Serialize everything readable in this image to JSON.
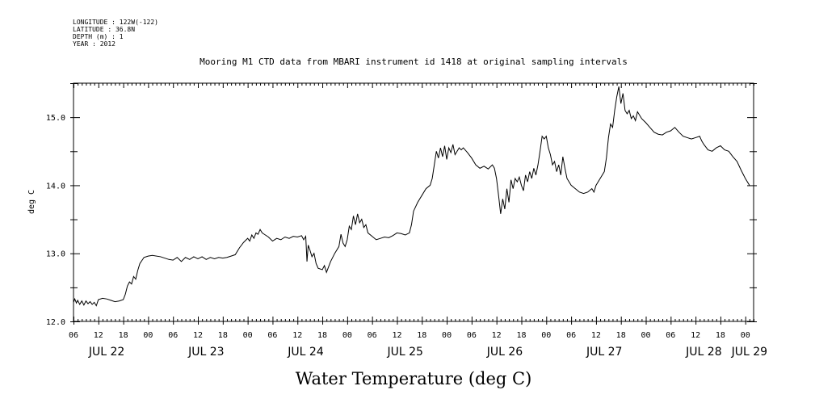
{
  "header": {
    "lines": [
      "LONGITUDE : 122W(-122)",
      "LATITUDE : 36.8N",
      "DEPTH (m) : 1",
      "YEAR : 2012"
    ]
  },
  "chart_data": {
    "type": "line",
    "title": "Mooring M1 CTD data from MBARI instrument id 1418 at original sampling intervals",
    "ylabel": "deg C",
    "xlabel": "Water Temperature (deg C)",
    "ylim": [
      12.0,
      15.5
    ],
    "xlim_hours": [
      6,
      170
    ],
    "x_unit": "hours from 2012-07-22 00:00",
    "yticks": [
      12.0,
      13.0,
      14.0,
      15.0
    ],
    "ytick_labels": [
      "12.0",
      "13.0",
      "14.0",
      "15.0"
    ],
    "xtick_labels": [
      {
        "h": 6,
        "label": "06"
      },
      {
        "h": 12,
        "label": "12"
      },
      {
        "h": 18,
        "label": "18"
      },
      {
        "h": 24,
        "label": "00"
      },
      {
        "h": 30,
        "label": "06"
      },
      {
        "h": 36,
        "label": "12"
      },
      {
        "h": 42,
        "label": "18"
      },
      {
        "h": 48,
        "label": "00"
      },
      {
        "h": 54,
        "label": "06"
      },
      {
        "h": 60,
        "label": "12"
      },
      {
        "h": 66,
        "label": "18"
      },
      {
        "h": 72,
        "label": "00"
      },
      {
        "h": 78,
        "label": "06"
      },
      {
        "h": 84,
        "label": "12"
      },
      {
        "h": 90,
        "label": "18"
      },
      {
        "h": 96,
        "label": "00"
      },
      {
        "h": 102,
        "label": "06"
      },
      {
        "h": 108,
        "label": "12"
      },
      {
        "h": 114,
        "label": "18"
      },
      {
        "h": 120,
        "label": "00"
      },
      {
        "h": 126,
        "label": "06"
      },
      {
        "h": 132,
        "label": "12"
      },
      {
        "h": 138,
        "label": "18"
      },
      {
        "h": 144,
        "label": "00"
      },
      {
        "h": 150,
        "label": "06"
      },
      {
        "h": 156,
        "label": "12"
      },
      {
        "h": 162,
        "label": "18"
      },
      {
        "h": 168,
        "label": "00"
      }
    ],
    "day_labels": [
      {
        "h": 14,
        "label": "JUL 22"
      },
      {
        "h": 38,
        "label": "JUL 23"
      },
      {
        "h": 62,
        "label": "JUL 24"
      },
      {
        "h": 86,
        "label": "JUL 25"
      },
      {
        "h": 110,
        "label": "JUL 26"
      },
      {
        "h": 134,
        "label": "JUL 27"
      },
      {
        "h": 158,
        "label": "JUL 28"
      },
      {
        "h": 169,
        "label": "JUL 29"
      }
    ],
    "series": [
      {
        "points": [
          [
            6.0,
            12.28
          ],
          [
            6.3,
            12.33
          ],
          [
            6.7,
            12.27
          ],
          [
            7.0,
            12.31
          ],
          [
            7.5,
            12.25
          ],
          [
            8.0,
            12.3
          ],
          [
            8.5,
            12.24
          ],
          [
            9.0,
            12.3
          ],
          [
            9.5,
            12.26
          ],
          [
            10.0,
            12.29
          ],
          [
            10.5,
            12.25
          ],
          [
            11.0,
            12.28
          ],
          [
            11.5,
            12.23
          ],
          [
            12.0,
            12.32
          ],
          [
            13.0,
            12.34
          ],
          [
            14.0,
            12.33
          ],
          [
            15.0,
            12.31
          ],
          [
            16.0,
            12.29
          ],
          [
            17.0,
            12.3
          ],
          [
            18.0,
            12.32
          ],
          [
            18.5,
            12.4
          ],
          [
            19.0,
            12.52
          ],
          [
            19.5,
            12.58
          ],
          [
            20.0,
            12.55
          ],
          [
            20.5,
            12.66
          ],
          [
            21.0,
            12.62
          ],
          [
            21.5,
            12.75
          ],
          [
            22.0,
            12.85
          ],
          [
            23.0,
            12.94
          ],
          [
            24.0,
            12.96
          ],
          [
            25.0,
            12.97
          ],
          [
            27.0,
            12.95
          ],
          [
            29.0,
            12.91
          ],
          [
            30.0,
            12.9
          ],
          [
            31.0,
            12.94
          ],
          [
            32.0,
            12.88
          ],
          [
            33.0,
            12.94
          ],
          [
            34.0,
            12.91
          ],
          [
            35.0,
            12.95
          ],
          [
            36.0,
            12.92
          ],
          [
            37.0,
            12.95
          ],
          [
            38.0,
            12.91
          ],
          [
            39.0,
            12.94
          ],
          [
            40.0,
            12.92
          ],
          [
            41.0,
            12.94
          ],
          [
            42.0,
            12.93
          ],
          [
            43.0,
            12.94
          ],
          [
            44.0,
            12.96
          ],
          [
            45.0,
            12.98
          ],
          [
            46.0,
            13.08
          ],
          [
            47.0,
            13.16
          ],
          [
            48.0,
            13.22
          ],
          [
            48.5,
            13.18
          ],
          [
            49.0,
            13.27
          ],
          [
            49.5,
            13.22
          ],
          [
            50.0,
            13.3
          ],
          [
            50.5,
            13.28
          ],
          [
            51.0,
            13.35
          ],
          [
            51.5,
            13.3
          ],
          [
            52.0,
            13.28
          ],
          [
            53.0,
            13.24
          ],
          [
            54.0,
            13.18
          ],
          [
            55.0,
            13.22
          ],
          [
            56.0,
            13.2
          ],
          [
            57.0,
            13.24
          ],
          [
            58.0,
            13.22
          ],
          [
            59.0,
            13.25
          ],
          [
            60.0,
            13.24
          ],
          [
            61.0,
            13.26
          ],
          [
            61.5,
            13.2
          ],
          [
            62.0,
            13.25
          ],
          [
            62.3,
            12.88
          ],
          [
            62.6,
            13.12
          ],
          [
            63.0,
            13.05
          ],
          [
            63.5,
            12.95
          ],
          [
            64.0,
            13.0
          ],
          [
            64.5,
            12.85
          ],
          [
            65.0,
            12.78
          ],
          [
            66.0,
            12.76
          ],
          [
            66.5,
            12.82
          ],
          [
            67.0,
            12.72
          ],
          [
            67.5,
            12.8
          ],
          [
            68.0,
            12.88
          ],
          [
            69.0,
            13.0
          ],
          [
            70.0,
            13.1
          ],
          [
            70.5,
            13.28
          ],
          [
            71.0,
            13.15
          ],
          [
            71.5,
            13.1
          ],
          [
            72.0,
            13.2
          ],
          [
            72.5,
            13.4
          ],
          [
            73.0,
            13.35
          ],
          [
            73.5,
            13.55
          ],
          [
            74.0,
            13.42
          ],
          [
            74.5,
            13.58
          ],
          [
            75.0,
            13.45
          ],
          [
            75.5,
            13.5
          ],
          [
            76.0,
            13.38
          ],
          [
            76.5,
            13.42
          ],
          [
            77.0,
            13.3
          ],
          [
            78.0,
            13.25
          ],
          [
            79.0,
            13.2
          ],
          [
            80.0,
            13.22
          ],
          [
            81.0,
            13.24
          ],
          [
            82.0,
            13.23
          ],
          [
            83.0,
            13.26
          ],
          [
            84.0,
            13.3
          ],
          [
            85.0,
            13.29
          ],
          [
            86.0,
            13.27
          ],
          [
            87.0,
            13.3
          ],
          [
            87.5,
            13.42
          ],
          [
            88.0,
            13.62
          ],
          [
            89.0,
            13.75
          ],
          [
            90.0,
            13.85
          ],
          [
            91.0,
            13.95
          ],
          [
            92.0,
            14.0
          ],
          [
            92.5,
            14.1
          ],
          [
            93.0,
            14.3
          ],
          [
            93.5,
            14.5
          ],
          [
            94.0,
            14.4
          ],
          [
            94.5,
            14.55
          ],
          [
            95.0,
            14.42
          ],
          [
            95.5,
            14.58
          ],
          [
            96.0,
            14.38
          ],
          [
            96.5,
            14.55
          ],
          [
            97.0,
            14.48
          ],
          [
            97.5,
            14.6
          ],
          [
            98.0,
            14.45
          ],
          [
            98.5,
            14.5
          ],
          [
            99.0,
            14.55
          ],
          [
            99.5,
            14.52
          ],
          [
            100.0,
            14.55
          ],
          [
            101.0,
            14.48
          ],
          [
            102.0,
            14.4
          ],
          [
            103.0,
            14.3
          ],
          [
            104.0,
            14.25
          ],
          [
            105.0,
            14.28
          ],
          [
            106.0,
            14.24
          ],
          [
            107.0,
            14.3
          ],
          [
            107.5,
            14.25
          ],
          [
            108.0,
            14.1
          ],
          [
            108.5,
            13.85
          ],
          [
            109.0,
            13.58
          ],
          [
            109.5,
            13.8
          ],
          [
            110.0,
            13.65
          ],
          [
            110.5,
            13.95
          ],
          [
            111.0,
            13.75
          ],
          [
            111.5,
            14.08
          ],
          [
            112.0,
            13.95
          ],
          [
            112.5,
            14.1
          ],
          [
            113.0,
            14.05
          ],
          [
            113.5,
            14.12
          ],
          [
            114.0,
            14.0
          ],
          [
            114.5,
            13.92
          ],
          [
            115.0,
            14.15
          ],
          [
            115.5,
            14.05
          ],
          [
            116.0,
            14.2
          ],
          [
            116.5,
            14.1
          ],
          [
            117.0,
            14.25
          ],
          [
            117.5,
            14.15
          ],
          [
            118.0,
            14.3
          ],
          [
            118.5,
            14.5
          ],
          [
            119.0,
            14.72
          ],
          [
            119.5,
            14.68
          ],
          [
            120.0,
            14.72
          ],
          [
            120.5,
            14.55
          ],
          [
            121.0,
            14.45
          ],
          [
            121.5,
            14.3
          ],
          [
            122.0,
            14.35
          ],
          [
            122.5,
            14.2
          ],
          [
            123.0,
            14.3
          ],
          [
            123.5,
            14.15
          ],
          [
            124.0,
            14.42
          ],
          [
            124.5,
            14.25
          ],
          [
            125.0,
            14.1
          ],
          [
            126.0,
            14.0
          ],
          [
            127.0,
            13.95
          ],
          [
            128.0,
            13.9
          ],
          [
            129.0,
            13.88
          ],
          [
            130.0,
            13.9
          ],
          [
            131.0,
            13.95
          ],
          [
            131.5,
            13.9
          ],
          [
            132.0,
            14.0
          ],
          [
            133.0,
            14.1
          ],
          [
            134.0,
            14.2
          ],
          [
            134.5,
            14.4
          ],
          [
            135.0,
            14.7
          ],
          [
            135.5,
            14.9
          ],
          [
            136.0,
            14.85
          ],
          [
            136.5,
            15.1
          ],
          [
            137.0,
            15.3
          ],
          [
            137.5,
            15.45
          ],
          [
            138.0,
            15.2
          ],
          [
            138.5,
            15.35
          ],
          [
            139.0,
            15.1
          ],
          [
            139.5,
            15.05
          ],
          [
            140.0,
            15.1
          ],
          [
            140.5,
            14.98
          ],
          [
            141.0,
            15.02
          ],
          [
            141.5,
            14.95
          ],
          [
            142.0,
            15.08
          ],
          [
            143.0,
            14.98
          ],
          [
            144.0,
            14.92
          ],
          [
            145.0,
            14.85
          ],
          [
            146.0,
            14.78
          ],
          [
            147.0,
            14.75
          ],
          [
            148.0,
            14.74
          ],
          [
            149.0,
            14.78
          ],
          [
            150.0,
            14.8
          ],
          [
            151.0,
            14.85
          ],
          [
            152.0,
            14.78
          ],
          [
            153.0,
            14.72
          ],
          [
            154.0,
            14.7
          ],
          [
            155.0,
            14.68
          ],
          [
            156.0,
            14.7
          ],
          [
            157.0,
            14.72
          ],
          [
            157.5,
            14.65
          ],
          [
            158.0,
            14.6
          ],
          [
            159.0,
            14.52
          ],
          [
            160.0,
            14.5
          ],
          [
            161.0,
            14.55
          ],
          [
            162.0,
            14.58
          ],
          [
            163.0,
            14.52
          ],
          [
            164.0,
            14.5
          ],
          [
            165.0,
            14.42
          ],
          [
            166.0,
            14.35
          ],
          [
            167.0,
            14.22
          ],
          [
            168.0,
            14.1
          ],
          [
            169.0,
            14.0
          ]
        ]
      }
    ]
  }
}
